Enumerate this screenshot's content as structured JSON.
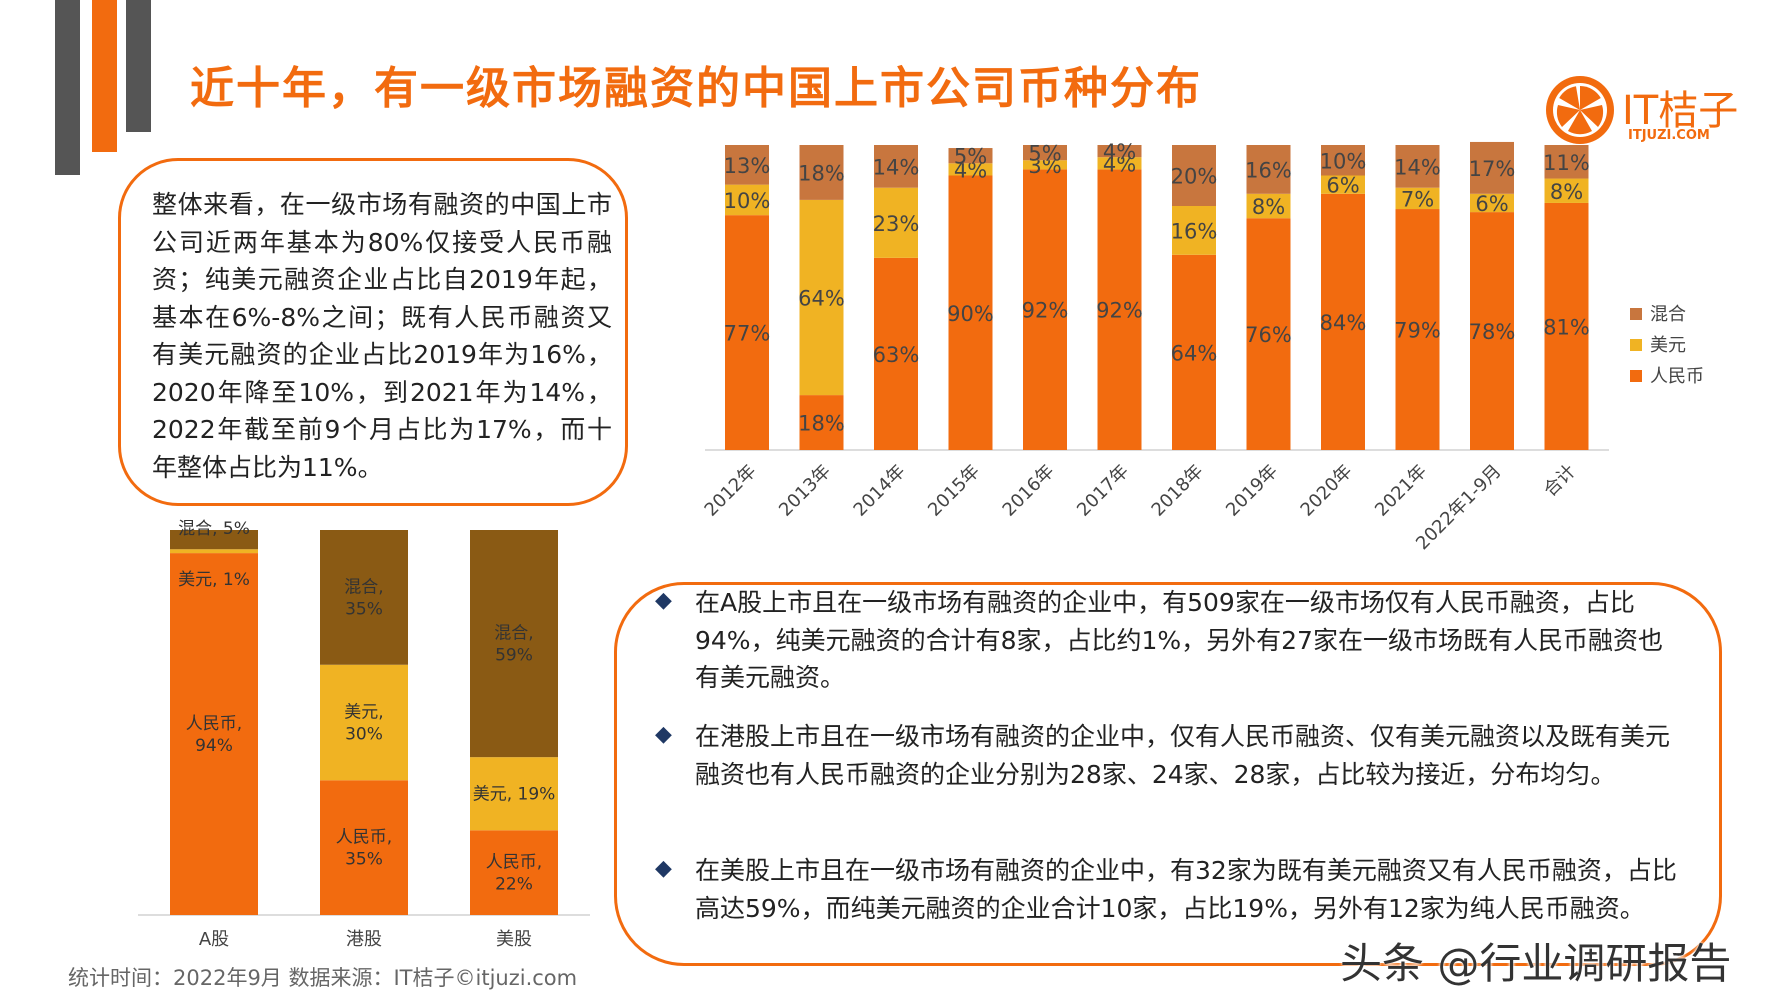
{
  "title": "近十年，有一级市场融资的中国上市公司币种分布",
  "logo": {
    "name": "IT桔子",
    "url": "ITJUZI.COM"
  },
  "summary": "整体来看，在一级市场有融资的中国上市公司近两年基本为80%仅接受人民币融资；纯美元融资企业占比自2019年起，基本在6%-8%之间；既有人民币融资又有美元融资的企业占比2019年为16%，2020年降至10%，到2021年为14%，2022年截至前9个月占比为17%，而十年整体占比为11%。",
  "bullets": [
    "在A股上市且在一级市场有融资的企业中，有509家在一级市场仅有人民币融资，占比94%，纯美元融资的合计有8家，占比约1%，另外有27家在一级市场既有人民币融资也有美元融资。",
    "在港股上市且在一级市场有融资的企业中，仅有人民币融资、仅有美元融资以及既有美元融资也有人民币融资的企业分别为28家、24家、28家，占比较为接近，分布均匀。",
    "在美股上市且在一级市场有融资的企业中，有32家为既有美元融资又有人民币融资，占比高达59%，而纯美元融资的企业合计10家，占比19%，另外有12家为纯人民币融资。"
  ],
  "footer": "统计时间：2022年9月  数据来源：IT桔子©itjuzi.com",
  "watermark": "头条 @行业调研报告",
  "colors": {
    "rmb": "#f26b0f",
    "usd": "#f0b323",
    "mixed": "#c8763e",
    "mixed_dark": "#8a5a14",
    "accent": "#f26b0f"
  },
  "chart_data": [
    {
      "type": "bar",
      "stacked": true,
      "categories": [
        "2012年",
        "2013年",
        "2014年",
        "2015年",
        "2016年",
        "2017年",
        "2018年",
        "2019年",
        "2020年",
        "2021年",
        "2022年1-9月",
        "合计"
      ],
      "series": [
        {
          "name": "人民币",
          "values": [
            77,
            18,
            63,
            90,
            92,
            92,
            64,
            76,
            84,
            79,
            78,
            81
          ]
        },
        {
          "name": "美元",
          "values": [
            10,
            64,
            23,
            4,
            3,
            4,
            16,
            8,
            6,
            7,
            6,
            8
          ]
        },
        {
          "name": "混合",
          "values": [
            13,
            18,
            14,
            5,
            5,
            4,
            20,
            16,
            10,
            14,
            17,
            11
          ]
        }
      ],
      "legend_position": "right",
      "ylim": [
        0,
        100
      ],
      "grid": false
    },
    {
      "type": "bar",
      "stacked": true,
      "categories": [
        "A股",
        "港股",
        "美股"
      ],
      "series": [
        {
          "name": "人民币",
          "values": [
            94,
            35,
            22
          ]
        },
        {
          "name": "美元",
          "values": [
            1,
            30,
            19
          ]
        },
        {
          "name": "混合",
          "values": [
            5,
            35,
            59
          ]
        }
      ],
      "data_labels": [
        {
          "人民币": "人民币,\n94%",
          "美元": "美元, 1%",
          "混合": "混合, 5%"
        },
        {
          "人民币": "人民币,\n35%",
          "美元": "美元,\n30%",
          "混合": "混合,\n35%"
        },
        {
          "人民币": "人民币,\n22%",
          "美元": "美元, 19%",
          "混合": "混合,\n59%"
        }
      ],
      "ylim": [
        0,
        100
      ],
      "grid": false
    }
  ]
}
